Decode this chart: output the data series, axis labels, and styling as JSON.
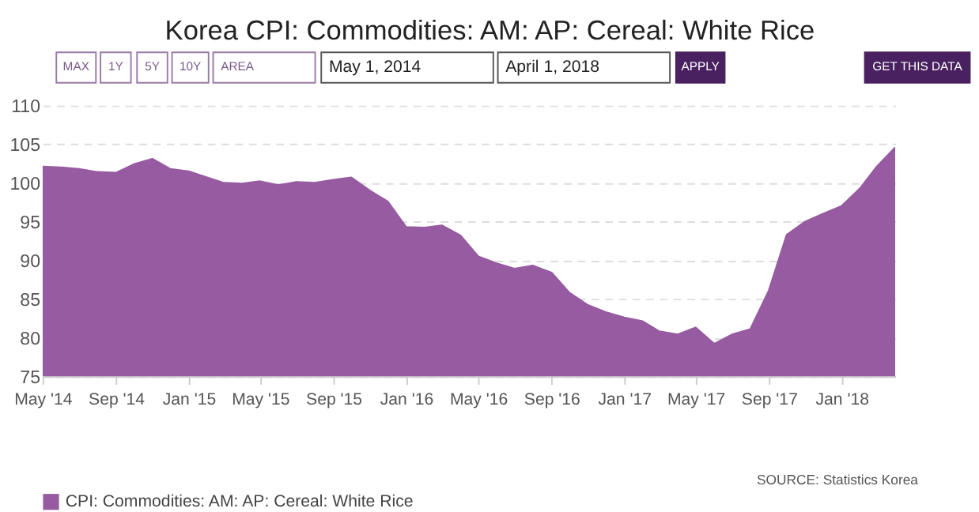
{
  "chart_data": {
    "type": "area",
    "title": "Korea CPI: Commodities: AM: AP: Cereal: White Rice",
    "x": [
      "2014-05",
      "2014-06",
      "2014-07",
      "2014-08",
      "2014-09",
      "2014-10",
      "2014-11",
      "2014-12",
      "2015-01",
      "2015-02",
      "2015-03",
      "2015-04",
      "2015-05",
      "2015-06",
      "2015-07",
      "2015-08",
      "2015-09",
      "2015-10",
      "2015-11",
      "2015-12",
      "2016-01",
      "2016-02",
      "2016-03",
      "2016-04",
      "2016-05",
      "2016-06",
      "2016-07",
      "2016-08",
      "2016-09",
      "2016-10",
      "2016-11",
      "2016-12",
      "2017-01",
      "2017-02",
      "2017-03",
      "2017-04",
      "2017-05",
      "2017-06",
      "2017-07",
      "2017-08",
      "2017-09",
      "2017-10",
      "2017-11",
      "2017-12",
      "2018-01",
      "2018-02",
      "2018-03",
      "2018-04"
    ],
    "series": [
      {
        "name": "CPI: Commodities: AM: AP: Cereal: White Rice",
        "color": "#965ba0",
        "values": [
          102.1,
          102.0,
          101.8,
          101.4,
          101.3,
          102.4,
          103.1,
          101.8,
          101.5,
          100.7,
          100.0,
          99.9,
          100.2,
          99.7,
          100.1,
          100.0,
          100.4,
          100.7,
          99.0,
          97.6,
          94.3,
          94.2,
          94.5,
          93.2,
          90.5,
          89.6,
          88.9,
          89.3,
          88.4,
          85.8,
          84.2,
          83.3,
          82.6,
          82.1,
          80.8,
          80.4,
          81.3,
          79.2,
          80.4,
          81.1,
          86.1,
          93.3,
          95.0,
          96.0,
          97.0,
          99.3,
          102.1,
          104.6
        ]
      }
    ],
    "xlim": [
      "2014-05",
      "2018-04"
    ],
    "xticks": [
      {
        "value": "2014-05",
        "label": "May '14"
      },
      {
        "value": "2014-09",
        "label": "Sep '14"
      },
      {
        "value": "2015-01",
        "label": "Jan '15"
      },
      {
        "value": "2015-05",
        "label": "May '15"
      },
      {
        "value": "2015-09",
        "label": "Sep '15"
      },
      {
        "value": "2016-01",
        "label": "Jan '16"
      },
      {
        "value": "2016-05",
        "label": "May '16"
      },
      {
        "value": "2016-09",
        "label": "Sep '16"
      },
      {
        "value": "2017-01",
        "label": "Jan '17"
      },
      {
        "value": "2017-05",
        "label": "May '17"
      },
      {
        "value": "2017-09",
        "label": "Sep '17"
      },
      {
        "value": "2018-01",
        "label": "Jan '18"
      }
    ],
    "ylim": [
      75,
      110
    ],
    "yticks": [
      75,
      80,
      85,
      90,
      95,
      100,
      105,
      110
    ],
    "grid": "y",
    "legend": "bottom",
    "annotations": [
      "MAX",
      "1Y",
      "5Y",
      "10Y",
      "AREA",
      "May 1, 2014",
      "April 1, 2018",
      "APPLY",
      "GET THIS DATA",
      "SOURCE: Statistics Korea"
    ]
  }
}
